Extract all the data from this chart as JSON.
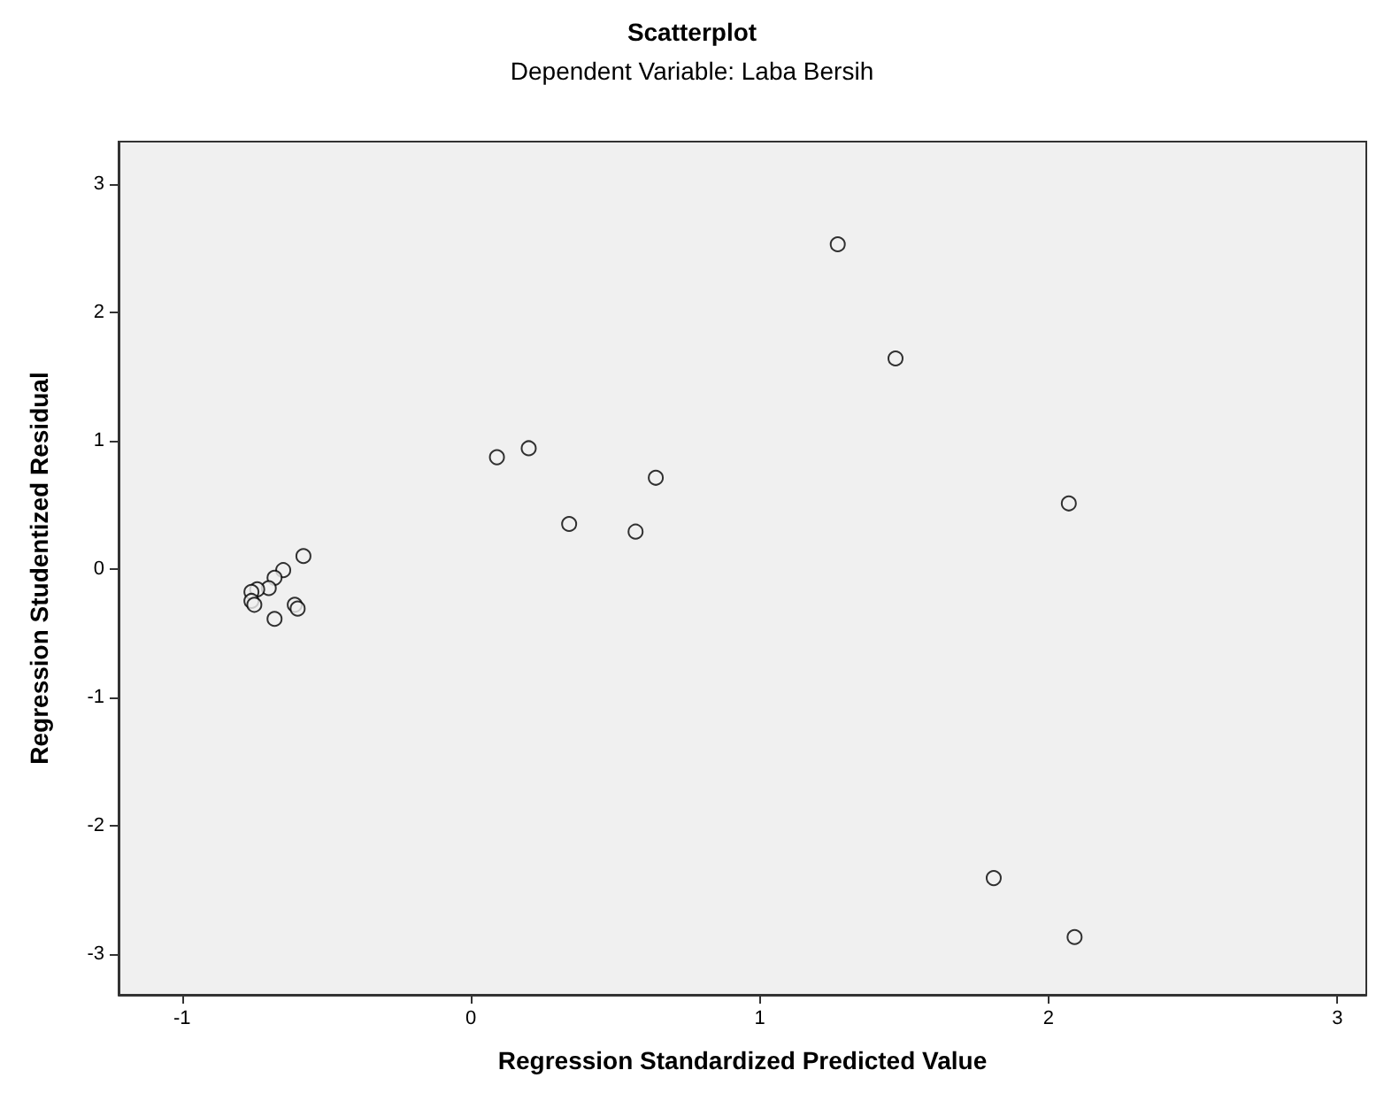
{
  "chart_data": {
    "type": "scatter",
    "title": "Scatterplot",
    "subtitle": "Dependent Variable: Laba Bersih",
    "xlabel": "Regression Standardized Predicted Value",
    "ylabel": "Regression Studentized Residual",
    "x": [
      1.27,
      1.47,
      0.09,
      0.2,
      0.64,
      0.34,
      0.57,
      2.07,
      1.81,
      2.09,
      -0.58,
      -0.65,
      -0.68,
      -0.7,
      -0.74,
      -0.76,
      -0.76,
      -0.75,
      -0.68,
      -0.61,
      -0.6
    ],
    "values": [
      2.53,
      1.64,
      0.87,
      0.94,
      0.71,
      0.35,
      0.29,
      0.51,
      -2.41,
      -2.87,
      0.1,
      -0.01,
      -0.07,
      -0.15,
      -0.16,
      -0.18,
      -0.25,
      -0.28,
      -0.39,
      -0.28,
      -0.31
    ],
    "color": "#000000",
    "xlim": [
      -1.22,
      3.1
    ],
    "ylim": [
      -3.32,
      3.33
    ],
    "xticks": [
      -1,
      0,
      1,
      2,
      3
    ],
    "yticks": [
      -3,
      -2,
      -1,
      0,
      1,
      2,
      3
    ],
    "grid": false,
    "marker": "circle"
  }
}
